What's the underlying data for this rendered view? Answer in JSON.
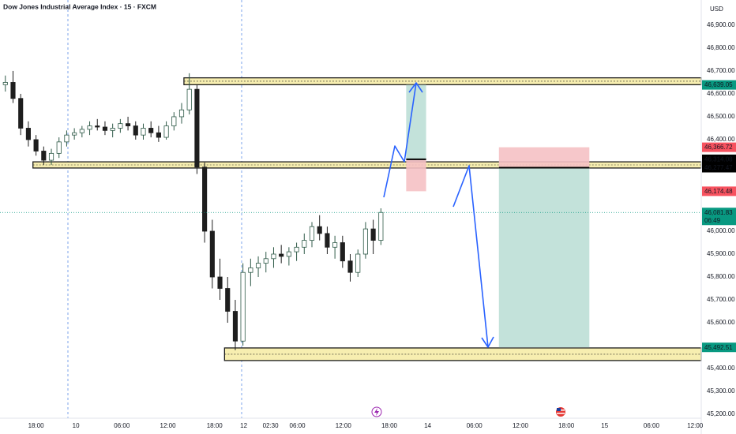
{
  "chart_data": {
    "type": "candlestick",
    "title": "Dow Jones Industrial Average Index · 15 · FXCM",
    "currency": "USD",
    "xlim": [
      -4.7,
      86.8
    ],
    "ylim": [
      45183,
      47010
    ],
    "xticks": [
      {
        "value": 0,
        "label": "18:00"
      },
      {
        "value": 5.2,
        "label": "10"
      },
      {
        "value": 11.2,
        "label": "06:00"
      },
      {
        "value": 17.2,
        "label": "12:00"
      },
      {
        "value": 23.3,
        "label": "18:00"
      },
      {
        "value": 27.1,
        "label": "12"
      },
      {
        "value": 30.6,
        "label": "02:30"
      },
      {
        "value": 34.1,
        "label": "06:00"
      },
      {
        "value": 40.1,
        "label": "12:00"
      },
      {
        "value": 46.1,
        "label": "18:00"
      },
      {
        "value": 51.1,
        "label": "14"
      },
      {
        "value": 57.2,
        "label": "06:00"
      },
      {
        "value": 63.2,
        "label": "12:00"
      },
      {
        "value": 69.2,
        "label": "18:00"
      },
      {
        "value": 74.2,
        "label": "15"
      },
      {
        "value": 80.3,
        "label": "06:00"
      },
      {
        "value": 86.0,
        "label": "12:00"
      }
    ],
    "yticks": [
      {
        "value": 46900,
        "label": "46,900.00"
      },
      {
        "value": 46800,
        "label": "46,800.00"
      },
      {
        "value": 46700,
        "label": "46,700.00"
      },
      {
        "value": 46600,
        "label": "46,600.00"
      },
      {
        "value": 46500,
        "label": "46,500.00"
      },
      {
        "value": 46400,
        "label": "46,400.00"
      },
      {
        "value": 46000,
        "label": "46,000.00"
      },
      {
        "value": 45900,
        "label": "45,900.00"
      },
      {
        "value": 45800,
        "label": "45,800.00"
      },
      {
        "value": 45700,
        "label": "45,700.00"
      },
      {
        "value": 45600,
        "label": "45,600.00"
      },
      {
        "value": 45400,
        "label": "45,400.00"
      },
      {
        "value": 45300,
        "label": "45,300.00"
      },
      {
        "value": 45200,
        "label": "45,200.00"
      }
    ],
    "up_color": "#2f5a48",
    "down_color": "#1e1e1e",
    "zone_color": "#f7eeb0",
    "profit_color": "#b9ddd3",
    "loss_color": "#f5c1c4",
    "candles": [
      {
        "x": -4,
        "o": 46640,
        "h": 46680,
        "l": 46610,
        "c": 46650
      },
      {
        "x": -3,
        "o": 46650,
        "h": 46700,
        "l": 46560,
        "c": 46580
      },
      {
        "x": -2,
        "o": 46580,
        "h": 46600,
        "l": 46420,
        "c": 46450
      },
      {
        "x": -1,
        "o": 46450,
        "h": 46480,
        "l": 46370,
        "c": 46400
      },
      {
        "x": 0,
        "o": 46400,
        "h": 46420,
        "l": 46330,
        "c": 46350
      },
      {
        "x": 1,
        "o": 46350,
        "h": 46370,
        "l": 46290,
        "c": 46310
      },
      {
        "x": 2,
        "o": 46310,
        "h": 46360,
        "l": 46290,
        "c": 46340
      },
      {
        "x": 3,
        "o": 46340,
        "h": 46410,
        "l": 46320,
        "c": 46390
      },
      {
        "x": 4,
        "o": 46390,
        "h": 46440,
        "l": 46370,
        "c": 46420
      },
      {
        "x": 5,
        "o": 46420,
        "h": 46450,
        "l": 46400,
        "c": 46430
      },
      {
        "x": 6,
        "o": 46430,
        "h": 46460,
        "l": 46410,
        "c": 46445
      },
      {
        "x": 7,
        "o": 46445,
        "h": 46480,
        "l": 46420,
        "c": 46460
      },
      {
        "x": 8,
        "o": 46460,
        "h": 46490,
        "l": 46440,
        "c": 46455
      },
      {
        "x": 9,
        "o": 46455,
        "h": 46480,
        "l": 46420,
        "c": 46440
      },
      {
        "x": 10,
        "o": 46440,
        "h": 46470,
        "l": 46410,
        "c": 46450
      },
      {
        "x": 11,
        "o": 46450,
        "h": 46490,
        "l": 46430,
        "c": 46470
      },
      {
        "x": 12,
        "o": 46470,
        "h": 46500,
        "l": 46440,
        "c": 46460
      },
      {
        "x": 13,
        "o": 46460,
        "h": 46480,
        "l": 46400,
        "c": 46420
      },
      {
        "x": 14,
        "o": 46420,
        "h": 46470,
        "l": 46400,
        "c": 46450
      },
      {
        "x": 15,
        "o": 46450,
        "h": 46480,
        "l": 46410,
        "c": 46430
      },
      {
        "x": 16,
        "o": 46430,
        "h": 46460,
        "l": 46390,
        "c": 46410
      },
      {
        "x": 17,
        "o": 46410,
        "h": 46480,
        "l": 46400,
        "c": 46460
      },
      {
        "x": 18,
        "o": 46460,
        "h": 46520,
        "l": 46440,
        "c": 46500
      },
      {
        "x": 19,
        "o": 46500,
        "h": 46560,
        "l": 46470,
        "c": 46530
      },
      {
        "x": 20,
        "o": 46530,
        "h": 46690,
        "l": 46510,
        "c": 46620
      },
      {
        "x": 21,
        "o": 46620,
        "h": 46640,
        "l": 46250,
        "c": 46280
      },
      {
        "x": 22,
        "o": 46280,
        "h": 46300,
        "l": 45950,
        "c": 46000
      },
      {
        "x": 23,
        "o": 46000,
        "h": 46050,
        "l": 45750,
        "c": 45800
      },
      {
        "x": 24,
        "o": 45800,
        "h": 45880,
        "l": 45700,
        "c": 45750
      },
      {
        "x": 25,
        "o": 45750,
        "h": 45800,
        "l": 45600,
        "c": 45650
      },
      {
        "x": 26,
        "o": 45650,
        "h": 45700,
        "l": 45480,
        "c": 45520
      },
      {
        "x": 27,
        "o": 45520,
        "h": 45860,
        "l": 45500,
        "c": 45820
      },
      {
        "x": 28,
        "o": 45820,
        "h": 45880,
        "l": 45760,
        "c": 45840
      },
      {
        "x": 29,
        "o": 45840,
        "h": 45890,
        "l": 45800,
        "c": 45860
      },
      {
        "x": 30,
        "o": 45860,
        "h": 45910,
        "l": 45820,
        "c": 45880
      },
      {
        "x": 31,
        "o": 45880,
        "h": 45930,
        "l": 45840,
        "c": 45900
      },
      {
        "x": 32,
        "o": 45900,
        "h": 45940,
        "l": 45860,
        "c": 45890
      },
      {
        "x": 33,
        "o": 45890,
        "h": 45930,
        "l": 45850,
        "c": 45910
      },
      {
        "x": 34,
        "o": 45910,
        "h": 45950,
        "l": 45870,
        "c": 45930
      },
      {
        "x": 35,
        "o": 45930,
        "h": 45990,
        "l": 45900,
        "c": 45960
      },
      {
        "x": 36,
        "o": 45960,
        "h": 46040,
        "l": 45930,
        "c": 46020
      },
      {
        "x": 37,
        "o": 46020,
        "h": 46070,
        "l": 45960,
        "c": 45990
      },
      {
        "x": 38,
        "o": 45990,
        "h": 46020,
        "l": 45900,
        "c": 45930
      },
      {
        "x": 39,
        "o": 45930,
        "h": 45980,
        "l": 45880,
        "c": 45950
      },
      {
        "x": 40,
        "o": 45950,
        "h": 45980,
        "l": 45840,
        "c": 45870
      },
      {
        "x": 41,
        "o": 45870,
        "h": 45900,
        "l": 45780,
        "c": 45820
      },
      {
        "x": 42,
        "o": 45820,
        "h": 45920,
        "l": 45800,
        "c": 45900
      },
      {
        "x": 43,
        "o": 45900,
        "h": 46040,
        "l": 45880,
        "c": 46010
      },
      {
        "x": 44,
        "o": 46010,
        "h": 46050,
        "l": 45900,
        "c": 45960
      },
      {
        "x": 45,
        "o": 45960,
        "h": 46100,
        "l": 45940,
        "c": 46081.83
      }
    ],
    "zones": [
      {
        "x_start": 19.3,
        "low": 46640,
        "high": 46670
      },
      {
        "x_start": -0.4,
        "low": 46276,
        "high": 46303
      },
      {
        "x_start": 24.6,
        "low": 45435,
        "high": 45490
      }
    ],
    "positions": [
      {
        "x_start": 48.3,
        "x_end": 50.9,
        "entry": 46314.08,
        "target": 46639.05,
        "stop": 46174.48,
        "value_labels": {
          "entry": "46,314.08",
          "target": "46,639.05",
          "stop": "46,174.48"
        }
      },
      {
        "x_start": 60.4,
        "x_end": 72.2,
        "entry": 46277.47,
        "target": 45492.51,
        "stop": 46366.72,
        "value_labels": {
          "entry": "46,277.47",
          "target": "45,492.51",
          "stop": "46,366.72"
        }
      }
    ],
    "last_price": {
      "value": 46081.83,
      "label": "46,081.83",
      "countdown": "06:49"
    }
  }
}
